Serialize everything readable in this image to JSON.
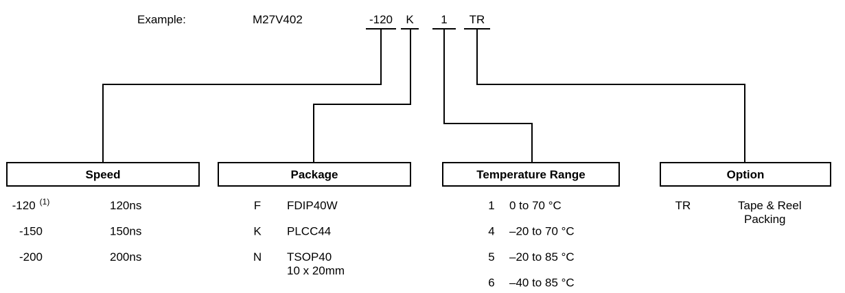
{
  "example": {
    "label": "Example:",
    "part": "M27V402",
    "fields": [
      "-120",
      "K",
      "1",
      "TR"
    ]
  },
  "groups": [
    {
      "title": "Speed",
      "rows": [
        {
          "code": "-120",
          "note": "(1)",
          "desc": [
            "120ns"
          ]
        },
        {
          "code": "-150",
          "desc": [
            "150ns"
          ]
        },
        {
          "code": "-200",
          "desc": [
            "200ns"
          ]
        }
      ]
    },
    {
      "title": "Package",
      "rows": [
        {
          "code": "F",
          "desc": [
            "FDIP40W"
          ]
        },
        {
          "code": "K",
          "desc": [
            "PLCC44"
          ]
        },
        {
          "code": "N",
          "desc": [
            "TSOP40",
            "10 x 20mm"
          ]
        }
      ]
    },
    {
      "title": "Temperature Range",
      "rows": [
        {
          "code": "1",
          "desc": [
            "0 to 70 °C"
          ]
        },
        {
          "code": "4",
          "desc": [
            "–20 to 70 °C"
          ]
        },
        {
          "code": "5",
          "desc": [
            "–20 to 85 °C"
          ]
        },
        {
          "code": "6",
          "desc": [
            "–40 to 85 °C"
          ]
        }
      ]
    },
    {
      "title": "Option",
      "rows": [
        {
          "code": "TR",
          "desc": [
            "Tape & Reel",
            "Packing"
          ]
        }
      ]
    }
  ]
}
